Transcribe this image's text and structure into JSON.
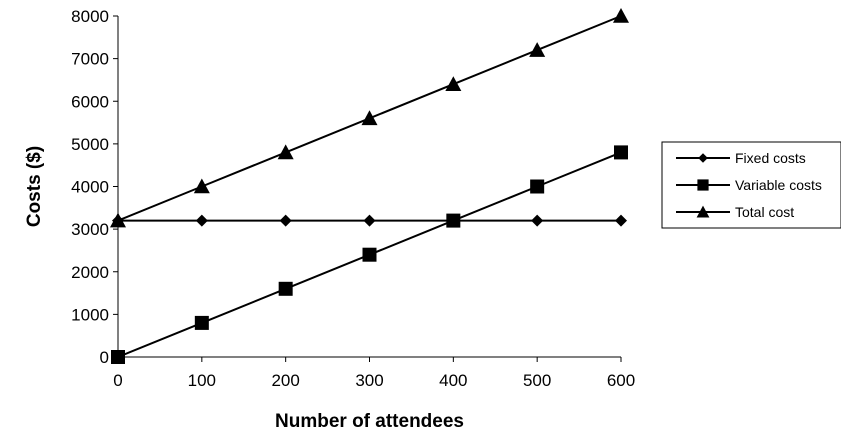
{
  "chart_data": {
    "type": "line",
    "title": "",
    "xlabel": "Number of attendees",
    "ylabel": "Costs ($)",
    "x": [
      0,
      100,
      200,
      300,
      400,
      500,
      600
    ],
    "xlim": [
      0,
      600
    ],
    "ylim": [
      0,
      8000
    ],
    "xticks": [
      0,
      100,
      200,
      300,
      400,
      500,
      600
    ],
    "yticks": [
      0,
      1000,
      2000,
      3000,
      4000,
      5000,
      6000,
      7000,
      8000
    ],
    "grid": false,
    "legend_position": "right",
    "series": [
      {
        "name": "Fixed costs",
        "marker": "diamond",
        "color": "#000000",
        "values": [
          3200,
          3200,
          3200,
          3200,
          3200,
          3200,
          3200
        ]
      },
      {
        "name": "Variable costs",
        "marker": "square",
        "color": "#000000",
        "values": [
          0,
          800,
          1600,
          2400,
          3200,
          4000,
          4800
        ]
      },
      {
        "name": "Total cost",
        "marker": "triangle",
        "color": "#000000",
        "values": [
          3200,
          4000,
          4800,
          5600,
          6400,
          7200,
          8000
        ]
      }
    ]
  }
}
